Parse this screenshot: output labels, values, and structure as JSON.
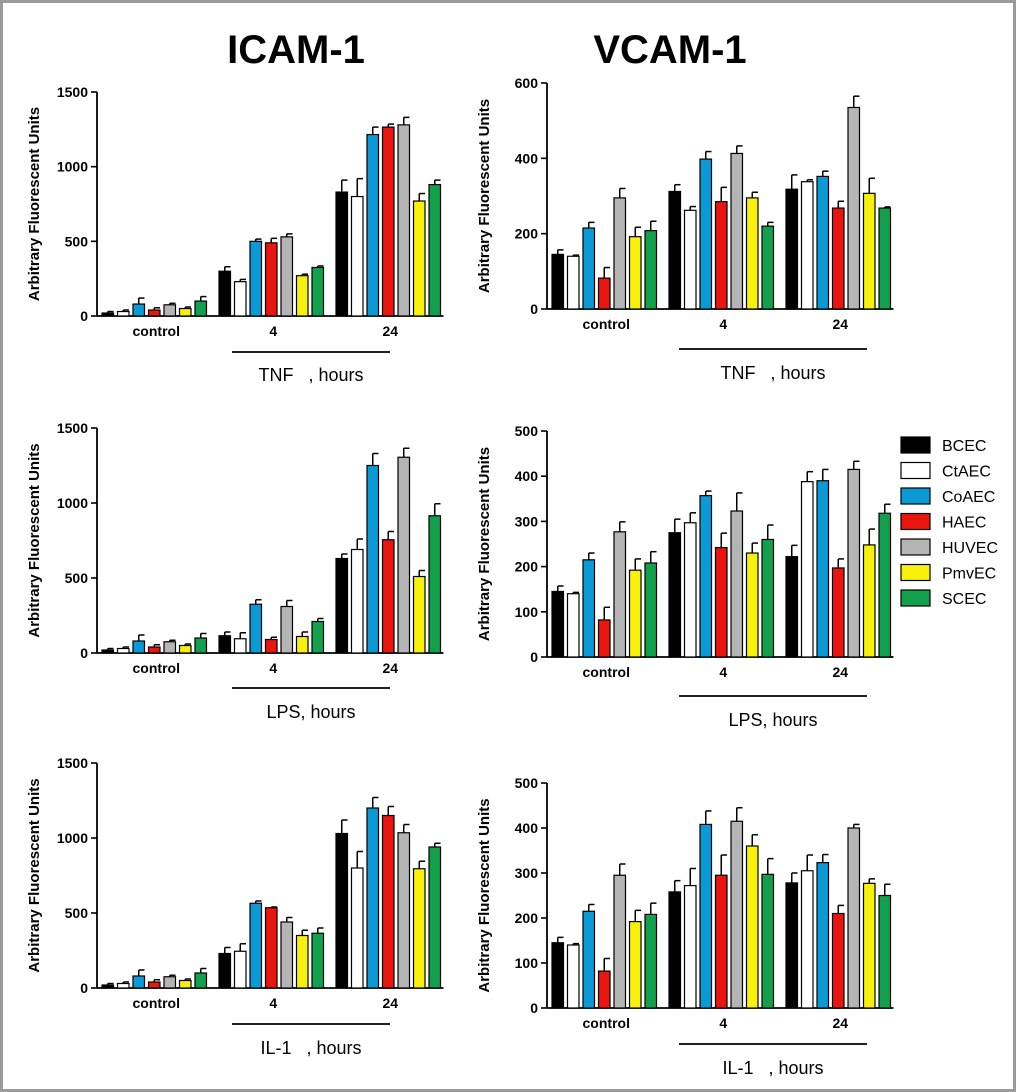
{
  "column_titles": [
    "ICAM-1",
    "VCAM-1"
  ],
  "legend": [
    {
      "name": "BCEC",
      "color": "#000000"
    },
    {
      "name": "CtAEC",
      "color": "#ffffff"
    },
    {
      "name": "CoAEC",
      "color": "#0b9ad6"
    },
    {
      "name": "HAEC",
      "color": "#e8160e"
    },
    {
      "name": "HUVEC",
      "color": "#b5b5b5"
    },
    {
      "name": "PmvEC",
      "color": "#f7f00a"
    },
    {
      "name": "SCEC",
      "color": "#12a04c"
    }
  ],
  "chart_data": [
    {
      "type": "bar",
      "column_title": "ICAM-1",
      "ylabel": "Arbitrary Fluorescent Units",
      "xlabel": "TNF   , hours",
      "ylim": [
        0,
        1500
      ],
      "yticks": [
        0,
        500,
        1000,
        1500
      ],
      "categories": [
        "control",
        "4",
        "24"
      ],
      "series": [
        {
          "name": "BCEC",
          "values": [
            20,
            300,
            830
          ],
          "errors": [
            10,
            30,
            80
          ]
        },
        {
          "name": "CtAEC",
          "values": [
            30,
            230,
            800
          ],
          "errors": [
            10,
            15,
            120
          ]
        },
        {
          "name": "CoAEC",
          "values": [
            80,
            500,
            1215
          ],
          "errors": [
            40,
            15,
            50
          ]
        },
        {
          "name": "HAEC",
          "values": [
            40,
            490,
            1265
          ],
          "errors": [
            15,
            30,
            20
          ]
        },
        {
          "name": "HUVEC",
          "values": [
            75,
            530,
            1280
          ],
          "errors": [
            10,
            20,
            50
          ]
        },
        {
          "name": "PmvEC",
          "values": [
            50,
            270,
            770
          ],
          "errors": [
            10,
            10,
            50
          ]
        },
        {
          "name": "SCEC",
          "values": [
            100,
            325,
            880
          ],
          "errors": [
            30,
            10,
            30
          ]
        }
      ]
    },
    {
      "type": "bar",
      "column_title": "VCAM-1",
      "ylabel": "Arbitrary Fluorescent Units",
      "xlabel": "TNF   , hours",
      "ylim": [
        0,
        600
      ],
      "yticks": [
        0,
        200,
        400,
        600
      ],
      "categories": [
        "control",
        "4",
        "24"
      ],
      "series": [
        {
          "name": "BCEC",
          "values": [
            145,
            312,
            318
          ],
          "errors": [
            12,
            18,
            38
          ]
        },
        {
          "name": "CtAEC",
          "values": [
            140,
            262,
            338
          ],
          "errors": [
            3,
            10,
            5
          ]
        },
        {
          "name": "CoAEC",
          "values": [
            215,
            398,
            352
          ],
          "errors": [
            15,
            20,
            14
          ]
        },
        {
          "name": "HAEC",
          "values": [
            82,
            285,
            268
          ],
          "errors": [
            28,
            38,
            18
          ]
        },
        {
          "name": "HUVEC",
          "values": [
            295,
            413,
            535
          ],
          "errors": [
            25,
            20,
            30
          ]
        },
        {
          "name": "PmvEC",
          "values": [
            192,
            295,
            307
          ],
          "errors": [
            25,
            15,
            40
          ]
        },
        {
          "name": "SCEC",
          "values": [
            208,
            220,
            268
          ],
          "errors": [
            25,
            10,
            3
          ]
        }
      ]
    },
    {
      "type": "bar",
      "column_title": "ICAM-1",
      "ylabel": "Arbitrary Fluorescent Units",
      "xlabel": "LPS, hours",
      "ylim": [
        0,
        1500
      ],
      "yticks": [
        0,
        500,
        1000,
        1500
      ],
      "categories": [
        "control",
        "4",
        "24"
      ],
      "series": [
        {
          "name": "BCEC",
          "values": [
            20,
            115,
            630
          ],
          "errors": [
            10,
            25,
            30
          ]
        },
        {
          "name": "CtAEC",
          "values": [
            30,
            95,
            690
          ],
          "errors": [
            10,
            40,
            70
          ]
        },
        {
          "name": "CoAEC",
          "values": [
            80,
            325,
            1250
          ],
          "errors": [
            40,
            30,
            80
          ]
        },
        {
          "name": "HAEC",
          "values": [
            40,
            90,
            755
          ],
          "errors": [
            15,
            15,
            55
          ]
        },
        {
          "name": "HUVEC",
          "values": [
            75,
            310,
            1305
          ],
          "errors": [
            10,
            40,
            60
          ]
        },
        {
          "name": "PmvEC",
          "values": [
            50,
            110,
            510
          ],
          "errors": [
            10,
            30,
            40
          ]
        },
        {
          "name": "SCEC",
          "values": [
            100,
            210,
            915
          ],
          "errors": [
            30,
            20,
            80
          ]
        }
      ]
    },
    {
      "type": "bar",
      "column_title": "VCAM-1",
      "ylabel": "Arbitrary Fluorescent Units",
      "xlabel": "LPS, hours",
      "ylim": [
        0,
        500
      ],
      "yticks": [
        0,
        100,
        200,
        300,
        400,
        500
      ],
      "categories": [
        "control",
        "4",
        "24"
      ],
      "series": [
        {
          "name": "BCEC",
          "values": [
            145,
            275,
            222
          ],
          "errors": [
            12,
            30,
            25
          ]
        },
        {
          "name": "CtAEC",
          "values": [
            140,
            297,
            388
          ],
          "errors": [
            3,
            22,
            22
          ]
        },
        {
          "name": "CoAEC",
          "values": [
            215,
            357,
            390
          ],
          "errors": [
            15,
            10,
            25
          ]
        },
        {
          "name": "HAEC",
          "values": [
            82,
            242,
            197
          ],
          "errors": [
            28,
            32,
            20
          ]
        },
        {
          "name": "HUVEC",
          "values": [
            277,
            323,
            415
          ],
          "errors": [
            22,
            40,
            18
          ]
        },
        {
          "name": "PmvEC",
          "values": [
            192,
            230,
            248
          ],
          "errors": [
            25,
            22,
            35
          ]
        },
        {
          "name": "SCEC",
          "values": [
            208,
            260,
            318
          ],
          "errors": [
            25,
            32,
            20
          ]
        }
      ]
    },
    {
      "type": "bar",
      "column_title": "ICAM-1",
      "ylabel": "Arbitrary Fluorescent Units",
      "xlabel": "IL-1   , hours",
      "ylim": [
        0,
        1500
      ],
      "yticks": [
        0,
        500,
        1000,
        1500
      ],
      "categories": [
        "control",
        "4",
        "24"
      ],
      "series": [
        {
          "name": "BCEC",
          "values": [
            20,
            230,
            1030
          ],
          "errors": [
            10,
            40,
            90
          ]
        },
        {
          "name": "CtAEC",
          "values": [
            30,
            245,
            800
          ],
          "errors": [
            10,
            50,
            110
          ]
        },
        {
          "name": "CoAEC",
          "values": [
            80,
            565,
            1200
          ],
          "errors": [
            40,
            15,
            70
          ]
        },
        {
          "name": "HAEC",
          "values": [
            40,
            535,
            1150
          ],
          "errors": [
            15,
            5,
            60
          ]
        },
        {
          "name": "HUVEC",
          "values": [
            75,
            440,
            1035
          ],
          "errors": [
            10,
            30,
            55
          ]
        },
        {
          "name": "PmvEC",
          "values": [
            50,
            350,
            795
          ],
          "errors": [
            10,
            35,
            50
          ]
        },
        {
          "name": "SCEC",
          "values": [
            100,
            365,
            940
          ],
          "errors": [
            30,
            35,
            25
          ]
        }
      ]
    },
    {
      "type": "bar",
      "column_title": "VCAM-1",
      "ylabel": "Arbitrary Fluorescent Units",
      "xlabel": "IL-1   , hours",
      "ylim": [
        0,
        500
      ],
      "yticks": [
        0,
        100,
        200,
        300,
        400,
        500
      ],
      "categories": [
        "control",
        "4",
        "24"
      ],
      "series": [
        {
          "name": "BCEC",
          "values": [
            145,
            258,
            278
          ],
          "errors": [
            12,
            25,
            22
          ]
        },
        {
          "name": "CtAEC",
          "values": [
            140,
            272,
            305
          ],
          "errors": [
            3,
            38,
            35
          ]
        },
        {
          "name": "CoAEC",
          "values": [
            215,
            408,
            323
          ],
          "errors": [
            15,
            30,
            18
          ]
        },
        {
          "name": "HAEC",
          "values": [
            82,
            295,
            210
          ],
          "errors": [
            28,
            45,
            18
          ]
        },
        {
          "name": "HUVEC",
          "values": [
            295,
            415,
            400
          ],
          "errors": [
            25,
            30,
            8
          ]
        },
        {
          "name": "PmvEC",
          "values": [
            192,
            360,
            277
          ],
          "errors": [
            25,
            25,
            10
          ]
        },
        {
          "name": "SCEC",
          "values": [
            208,
            297,
            250
          ],
          "errors": [
            25,
            35,
            25
          ]
        }
      ]
    }
  ]
}
